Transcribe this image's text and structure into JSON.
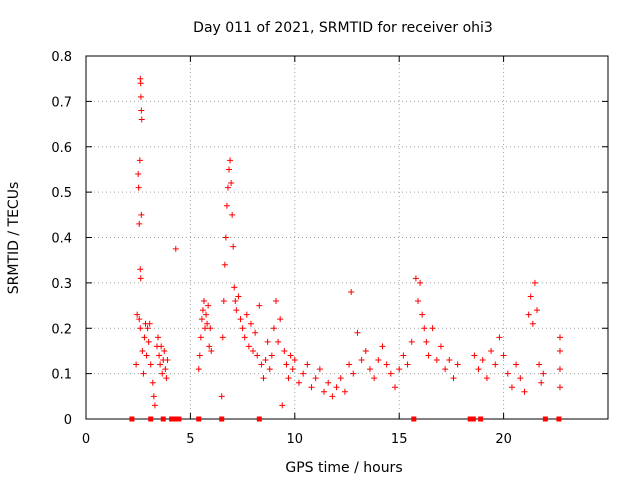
{
  "chart_data": {
    "type": "scatter",
    "title": "Day 011 of 2021, SRMTID for receiver ohi3",
    "xlabel": "GPS time / hours",
    "ylabel": "SRMTID / TECUs",
    "xlim": [
      0,
      25
    ],
    "ylim": [
      0,
      0.8
    ],
    "xticks": [
      0,
      5,
      10,
      15,
      20
    ],
    "xtick_labels": [
      "0",
      "5",
      "10",
      "15",
      "20"
    ],
    "yticks": [
      0,
      0.1,
      0.2,
      0.3,
      0.4,
      0.5,
      0.6,
      0.7,
      0.8
    ],
    "ytick_labels": [
      "0",
      "0.1",
      "0.2",
      "0.3",
      "0.4",
      "0.5",
      "0.6",
      "0.7",
      "0.8"
    ],
    "grid": true,
    "marker": "+",
    "series": [
      {
        "name": "SRMTID",
        "color": "#ff0000",
        "points": [
          [
            2.4,
            0.12
          ],
          [
            2.45,
            0.23
          ],
          [
            2.5,
            0.54
          ],
          [
            2.52,
            0.51
          ],
          [
            2.55,
            0.43
          ],
          [
            2.58,
            0.57
          ],
          [
            2.6,
            0.75
          ],
          [
            2.62,
            0.74
          ],
          [
            2.63,
            0.71
          ],
          [
            2.65,
            0.68
          ],
          [
            2.67,
            0.66
          ],
          [
            2.6,
            0.33
          ],
          [
            2.62,
            0.31
          ],
          [
            2.65,
            0.45
          ],
          [
            2.55,
            0.22
          ],
          [
            2.6,
            0.2
          ],
          [
            2.7,
            0.15
          ],
          [
            2.75,
            0.1
          ],
          [
            2.8,
            0.18
          ],
          [
            2.85,
            0.21
          ],
          [
            2.9,
            0.14
          ],
          [
            2.95,
            0.2
          ],
          [
            3.0,
            0.17
          ],
          [
            3.05,
            0.21
          ],
          [
            3.1,
            0.12
          ],
          [
            3.2,
            0.08
          ],
          [
            3.25,
            0.05
          ],
          [
            3.3,
            0.03
          ],
          [
            3.4,
            0.16
          ],
          [
            3.45,
            0.18
          ],
          [
            3.5,
            0.14
          ],
          [
            3.55,
            0.12
          ],
          [
            3.6,
            0.16
          ],
          [
            3.65,
            0.1
          ],
          [
            3.7,
            0.13
          ],
          [
            3.75,
            0.15
          ],
          [
            3.8,
            0.11
          ],
          [
            3.85,
            0.09
          ],
          [
            3.9,
            0.13
          ],
          [
            4.3,
            0.375
          ],
          [
            5.4,
            0.11
          ],
          [
            5.45,
            0.14
          ],
          [
            5.5,
            0.18
          ],
          [
            5.55,
            0.22
          ],
          [
            5.6,
            0.24
          ],
          [
            5.65,
            0.26
          ],
          [
            5.7,
            0.2
          ],
          [
            5.75,
            0.23
          ],
          [
            5.8,
            0.21
          ],
          [
            5.85,
            0.25
          ],
          [
            5.9,
            0.16
          ],
          [
            5.95,
            0.2
          ],
          [
            6.0,
            0.15
          ],
          [
            6.5,
            0.05
          ],
          [
            6.55,
            0.18
          ],
          [
            6.6,
            0.26
          ],
          [
            6.65,
            0.34
          ],
          [
            6.7,
            0.4
          ],
          [
            6.75,
            0.47
          ],
          [
            6.8,
            0.51
          ],
          [
            6.85,
            0.55
          ],
          [
            6.9,
            0.57
          ],
          [
            6.95,
            0.52
          ],
          [
            7.0,
            0.45
          ],
          [
            7.05,
            0.38
          ],
          [
            7.1,
            0.29
          ],
          [
            7.15,
            0.26
          ],
          [
            7.2,
            0.24
          ],
          [
            7.3,
            0.27
          ],
          [
            7.4,
            0.22
          ],
          [
            7.5,
            0.2
          ],
          [
            7.6,
            0.18
          ],
          [
            7.7,
            0.23
          ],
          [
            7.8,
            0.16
          ],
          [
            7.9,
            0.21
          ],
          [
            8.0,
            0.15
          ],
          [
            8.1,
            0.19
          ],
          [
            8.2,
            0.14
          ],
          [
            8.3,
            0.25
          ],
          [
            8.4,
            0.12
          ],
          [
            8.5,
            0.09
          ],
          [
            8.6,
            0.13
          ],
          [
            8.7,
            0.17
          ],
          [
            8.8,
            0.11
          ],
          [
            8.9,
            0.14
          ],
          [
            9.0,
            0.2
          ],
          [
            9.1,
            0.26
          ],
          [
            9.2,
            0.17
          ],
          [
            9.3,
            0.22
          ],
          [
            9.4,
            0.03
          ],
          [
            9.5,
            0.15
          ],
          [
            9.6,
            0.12
          ],
          [
            9.7,
            0.09
          ],
          [
            9.8,
            0.14
          ],
          [
            9.9,
            0.11
          ],
          [
            10.0,
            0.13
          ],
          [
            10.2,
            0.08
          ],
          [
            10.4,
            0.1
          ],
          [
            10.6,
            0.12
          ],
          [
            10.8,
            0.07
          ],
          [
            11.0,
            0.09
          ],
          [
            11.2,
            0.11
          ],
          [
            11.4,
            0.06
          ],
          [
            11.6,
            0.08
          ],
          [
            11.8,
            0.05
          ],
          [
            12.0,
            0.07
          ],
          [
            12.2,
            0.09
          ],
          [
            12.4,
            0.06
          ],
          [
            12.6,
            0.12
          ],
          [
            12.7,
            0.28
          ],
          [
            12.8,
            0.1
          ],
          [
            13.0,
            0.19
          ],
          [
            13.2,
            0.13
          ],
          [
            13.4,
            0.15
          ],
          [
            13.6,
            0.11
          ],
          [
            13.8,
            0.09
          ],
          [
            14.0,
            0.13
          ],
          [
            14.2,
            0.16
          ],
          [
            14.4,
            0.12
          ],
          [
            14.6,
            0.1
          ],
          [
            14.8,
            0.07
          ],
          [
            15.0,
            0.11
          ],
          [
            15.2,
            0.14
          ],
          [
            15.4,
            0.12
          ],
          [
            15.6,
            0.17
          ],
          [
            15.8,
            0.31
          ],
          [
            15.9,
            0.26
          ],
          [
            16.0,
            0.3
          ],
          [
            16.1,
            0.23
          ],
          [
            16.2,
            0.2
          ],
          [
            16.3,
            0.17
          ],
          [
            16.4,
            0.14
          ],
          [
            16.6,
            0.2
          ],
          [
            16.8,
            0.13
          ],
          [
            17.0,
            0.16
          ],
          [
            17.2,
            0.11
          ],
          [
            17.4,
            0.13
          ],
          [
            17.6,
            0.09
          ],
          [
            17.8,
            0.12
          ],
          [
            18.6,
            0.14
          ],
          [
            18.8,
            0.11
          ],
          [
            19.0,
            0.13
          ],
          [
            19.2,
            0.09
          ],
          [
            19.4,
            0.15
          ],
          [
            19.6,
            0.12
          ],
          [
            19.8,
            0.18
          ],
          [
            20.0,
            0.14
          ],
          [
            20.2,
            0.1
          ],
          [
            20.4,
            0.07
          ],
          [
            20.6,
            0.12
          ],
          [
            20.8,
            0.09
          ],
          [
            21.0,
            0.06
          ],
          [
            21.2,
            0.23
          ],
          [
            21.3,
            0.27
          ],
          [
            21.4,
            0.21
          ],
          [
            21.5,
            0.3
          ],
          [
            21.6,
            0.24
          ],
          [
            21.7,
            0.12
          ],
          [
            21.8,
            0.08
          ],
          [
            21.9,
            0.1
          ],
          [
            22.7,
            0.18
          ],
          [
            22.7,
            0.15
          ],
          [
            22.7,
            0.11
          ],
          [
            22.7,
            0.07
          ]
        ],
        "zero_markers_x": [
          2.2,
          3.1,
          3.7,
          4.1,
          4.25,
          4.45,
          5.4,
          6.5,
          8.3,
          15.7,
          18.4,
          18.55,
          18.9,
          22.0,
          22.65
        ]
      }
    ]
  }
}
